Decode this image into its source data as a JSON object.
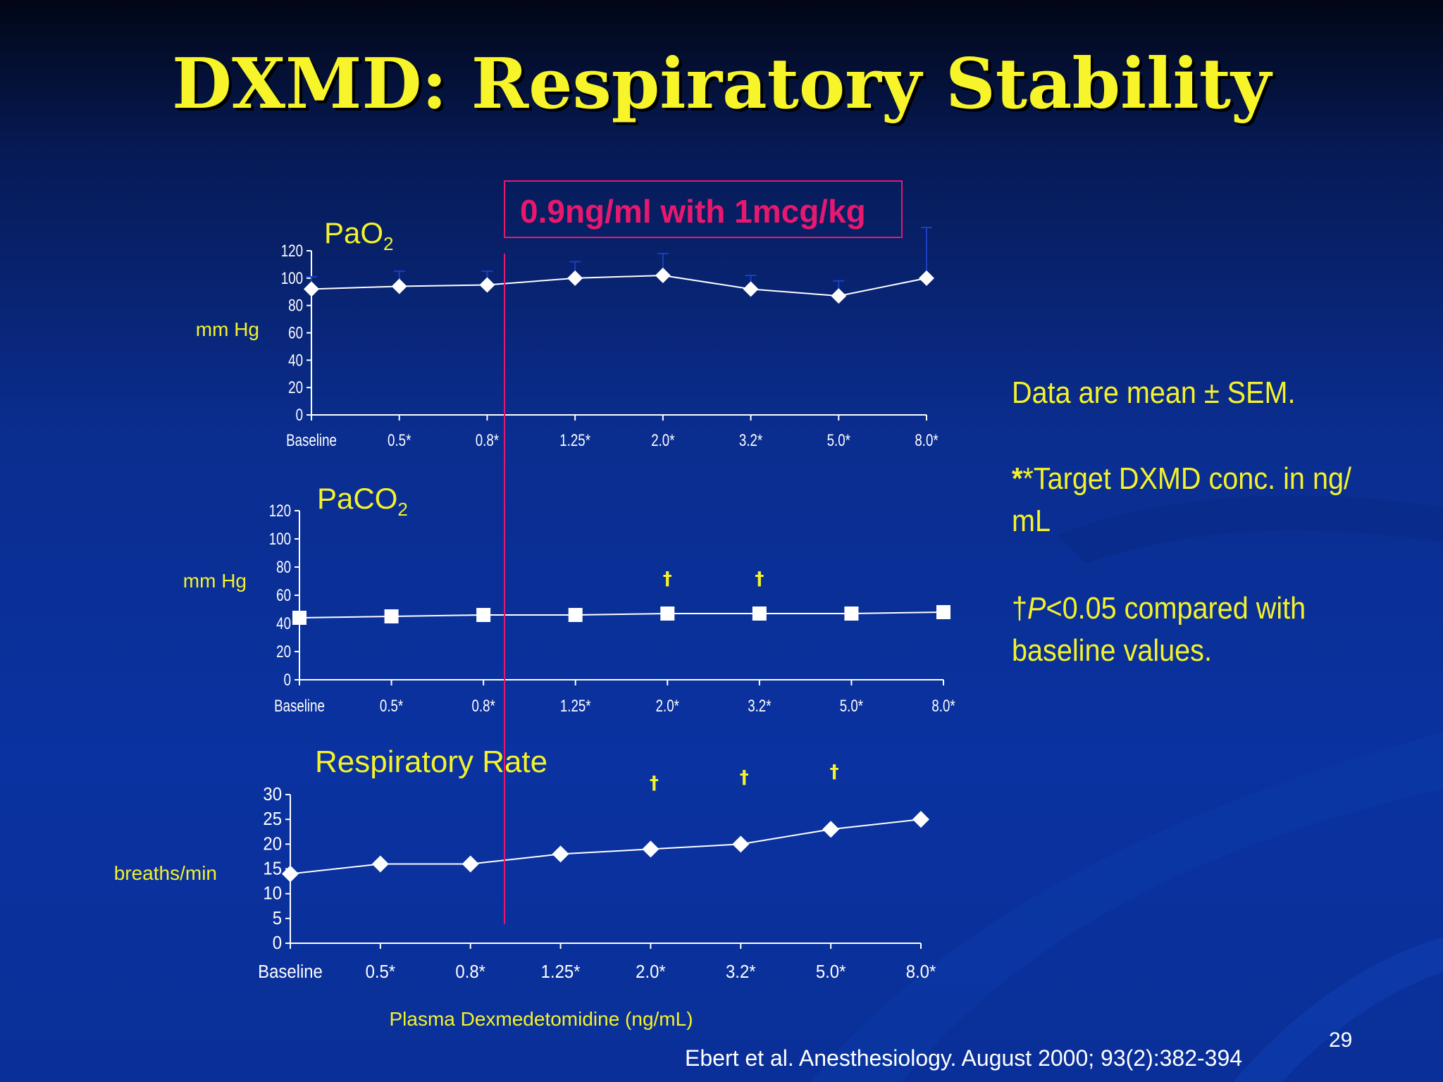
{
  "slide": {
    "title": "DXMD: Respiratory Stability",
    "page_number": "29",
    "citation": "Ebert et al. Anesthesiology. August 2000; 93(2):382-394",
    "colors": {
      "title": "#f7f52a",
      "annotation": "#e8186e",
      "notes": "#f4f22a",
      "series": "#ffffff"
    }
  },
  "annotation": {
    "label": "0.9ng/ml with 1mcg/kg"
  },
  "notes": {
    "line1": "Data are mean ± SEM.",
    "line2a": "*Target DXMD conc. in ng/",
    "line2b": "mL",
    "line3a_prefix": "†",
    "line3a_italic": "P",
    "line3a_rest": "<0.05 compared with",
    "line3b": "baseline values."
  },
  "chart_data": [
    {
      "type": "line",
      "title": "PaO",
      "title_sub": "2",
      "ylabel": "mm Hg",
      "categories": [
        "Baseline",
        "0.5*",
        "0.8*",
        "1.25*",
        "2.0*",
        "3.2*",
        "5.0*",
        "8.0*"
      ],
      "ylim": [
        0,
        120
      ],
      "yticks": [
        "0",
        "20",
        "40",
        "60",
        "80",
        "100",
        "120"
      ],
      "marker": "diamond",
      "series": [
        {
          "values": [
            92,
            94,
            95,
            100,
            102,
            92,
            87,
            100
          ],
          "sem": [
            9,
            11,
            10,
            12,
            16,
            10,
            11,
            37
          ]
        }
      ],
      "daggers": []
    },
    {
      "type": "line",
      "title": "PaCO",
      "title_sub": "2",
      "ylabel": "mm Hg",
      "categories": [
        "Baseline",
        "0.5*",
        "0.8*",
        "1.25*",
        "2.0*",
        "3.2*",
        "5.0*",
        "8.0*"
      ],
      "ylim": [
        0,
        120
      ],
      "yticks": [
        "0",
        "20",
        "40",
        "60",
        "80",
        "100",
        "120"
      ],
      "marker": "square",
      "series": [
        {
          "values": [
            44,
            45,
            46,
            46,
            47,
            47,
            47,
            48
          ]
        }
      ],
      "daggers": [
        "2.0*",
        "3.2*"
      ]
    },
    {
      "type": "line",
      "title": "Respiratory Rate",
      "ylabel": "breaths/min",
      "xlabel": "Plasma Dexmedetomidine (ng/mL)",
      "categories": [
        "Baseline",
        "0.5*",
        "0.8*",
        "1.25*",
        "2.0*",
        "3.2*",
        "5.0*",
        "8.0*"
      ],
      "ylim": [
        0,
        30
      ],
      "yticks": [
        "0",
        "5",
        "10",
        "15",
        "20",
        "25",
        "30"
      ],
      "marker": "diamond",
      "series": [
        {
          "values": [
            14,
            16,
            16,
            18,
            19,
            20,
            23,
            25
          ]
        }
      ],
      "daggers": [
        "2.0*",
        "3.2*",
        "5.0*"
      ]
    }
  ]
}
